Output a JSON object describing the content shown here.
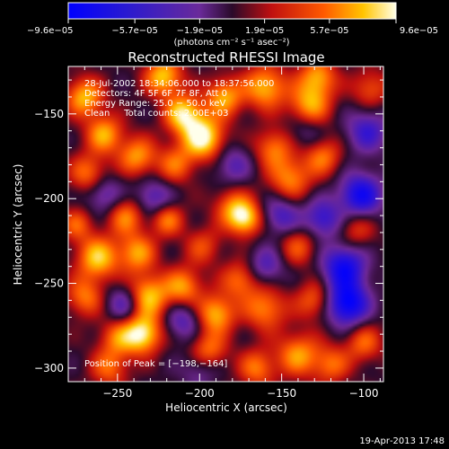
{
  "chart_data": {
    "type": "heatmap",
    "title": "Reconstructed RHESSI Image",
    "xlabel": "Heliocentric X (arcsec)",
    "ylabel": "Heliocentric Y (arcsec)",
    "xlim": [
      -280,
      -88
    ],
    "ylim": [
      -308,
      -122
    ],
    "x_ticks": [
      -250,
      -200,
      -150,
      -100
    ],
    "x_tick_labels": [
      "−250",
      "−200",
      "−150",
      "−100"
    ],
    "y_ticks": [
      -300,
      -250,
      -200,
      -150
    ],
    "y_tick_labels": [
      "−300",
      "−250",
      "−200",
      "−150"
    ],
    "colorbar": {
      "min": -9.6e-05,
      "max": 9.6e-05,
      "tick_values": [
        -9.6e-05,
        -5.7e-05,
        -1.9e-05,
        1.9e-05,
        5.7e-05,
        9.6e-05
      ],
      "tick_labels": [
        "−9.6e−05",
        "−5.7e−05",
        "−1.9e−05",
        "1.9e−05",
        "5.7e−05",
        "9.6e−05"
      ],
      "units": "(photons cm⁻² s⁻¹ asec⁻²)"
    },
    "annotations": [
      "28‑Jul‑2002 18:34:06.000 to 18:37:56.000",
      "Detectors: 4F 5F 6F 7F 8F, Att 0",
      "Energy Range: 25.0 − 50.0 keV",
      "Clean     Total counts: 2.00E+03"
    ],
    "peak": {
      "label": "Position of Peak = [−198,−164]",
      "x": -198,
      "y": -164
    },
    "footer": "19‑Apr‑2013 17:48",
    "sources": [
      {
        "x": -198,
        "y": -164,
        "a": 1.0,
        "r": 9
      },
      {
        "x": -210,
        "y": -150,
        "a": 0.85,
        "r": 8
      },
      {
        "x": -185,
        "y": -140,
        "a": 0.7,
        "r": 8
      },
      {
        "x": -222,
        "y": -128,
        "a": 0.8,
        "r": 8
      },
      {
        "x": -160,
        "y": -134,
        "a": 0.75,
        "r": 9
      },
      {
        "x": -133,
        "y": -145,
        "a": 0.7,
        "r": 9
      },
      {
        "x": -128,
        "y": -128,
        "a": 0.65,
        "r": 8
      },
      {
        "x": -270,
        "y": -140,
        "a": 0.75,
        "r": 8
      },
      {
        "x": -258,
        "y": -162,
        "a": 0.7,
        "r": 8
      },
      {
        "x": -268,
        "y": -185,
        "a": 0.55,
        "r": 8
      },
      {
        "x": -238,
        "y": -175,
        "a": 0.65,
        "r": 8
      },
      {
        "x": -245,
        "y": -210,
        "a": 0.6,
        "r": 8
      },
      {
        "x": -220,
        "y": -212,
        "a": 0.6,
        "r": 7
      },
      {
        "x": -262,
        "y": -235,
        "a": 0.8,
        "r": 9
      },
      {
        "x": -238,
        "y": -232,
        "a": 0.65,
        "r": 8
      },
      {
        "x": -270,
        "y": -258,
        "a": 0.55,
        "r": 8
      },
      {
        "x": -250,
        "y": -282,
        "a": 0.5,
        "r": 8
      },
      {
        "x": -232,
        "y": -258,
        "a": 0.85,
        "r": 9
      },
      {
        "x": -235,
        "y": -280,
        "a": 0.95,
        "r": 8
      },
      {
        "x": -210,
        "y": -252,
        "a": 0.65,
        "r": 8
      },
      {
        "x": -190,
        "y": -268,
        "a": 0.75,
        "r": 8
      },
      {
        "x": -195,
        "y": -290,
        "a": 0.6,
        "r": 8
      },
      {
        "x": -175,
        "y": -248,
        "a": 0.55,
        "r": 8
      },
      {
        "x": -160,
        "y": -265,
        "a": 0.6,
        "r": 9
      },
      {
        "x": -180,
        "y": -205,
        "a": 0.55,
        "r": 8
      },
      {
        "x": -172,
        "y": -212,
        "a": 0.8,
        "r": 7
      },
      {
        "x": -145,
        "y": -188,
        "a": 0.6,
        "r": 9
      },
      {
        "x": -155,
        "y": -170,
        "a": 0.55,
        "r": 8
      },
      {
        "x": -125,
        "y": -175,
        "a": 0.55,
        "r": 8
      },
      {
        "x": -140,
        "y": -228,
        "a": 0.45,
        "r": 8
      },
      {
        "x": -130,
        "y": -260,
        "a": 0.5,
        "r": 8
      },
      {
        "x": -140,
        "y": -292,
        "a": 0.65,
        "r": 9
      },
      {
        "x": -120,
        "y": -298,
        "a": 0.5,
        "r": 8
      },
      {
        "x": -100,
        "y": -285,
        "a": 0.5,
        "r": 8
      },
      {
        "x": -96,
        "y": -135,
        "a": 0.45,
        "r": 8
      },
      {
        "x": -105,
        "y": -218,
        "a": 0.4,
        "r": 8
      },
      {
        "x": -165,
        "y": -300,
        "a": 0.55,
        "r": 8
      },
      {
        "x": -215,
        "y": -180,
        "a": 0.5,
        "r": 8
      },
      {
        "x": -198,
        "y": -228,
        "a": 0.4,
        "r": 8
      },
      {
        "x": -255,
        "y": -300,
        "a": 0.5,
        "r": 8
      },
      {
        "x": -275,
        "y": -215,
        "a": 0.45,
        "r": 7
      },
      {
        "x": -112,
        "y": -240,
        "a": -0.85,
        "r": 9
      },
      {
        "x": -110,
        "y": -262,
        "a": -1.0,
        "r": 9
      },
      {
        "x": -102,
        "y": -198,
        "a": -0.85,
        "r": 9
      },
      {
        "x": -125,
        "y": -212,
        "a": -0.6,
        "r": 8
      },
      {
        "x": -150,
        "y": -210,
        "a": -0.5,
        "r": 8
      },
      {
        "x": -228,
        "y": -200,
        "a": -0.5,
        "r": 8
      },
      {
        "x": -258,
        "y": -198,
        "a": -0.45,
        "r": 8
      },
      {
        "x": -245,
        "y": -262,
        "a": -0.55,
        "r": 8
      },
      {
        "x": -210,
        "y": -272,
        "a": -0.45,
        "r": 8
      },
      {
        "x": -180,
        "y": -180,
        "a": -0.4,
        "r": 8
      },
      {
        "x": -160,
        "y": -240,
        "a": -0.45,
        "r": 8
      },
      {
        "x": -135,
        "y": -160,
        "a": -0.3,
        "r": 8
      },
      {
        "x": -200,
        "y": -300,
        "a": -0.35,
        "r": 8
      },
      {
        "x": -98,
        "y": -160,
        "a": -0.55,
        "r": 9
      }
    ]
  }
}
